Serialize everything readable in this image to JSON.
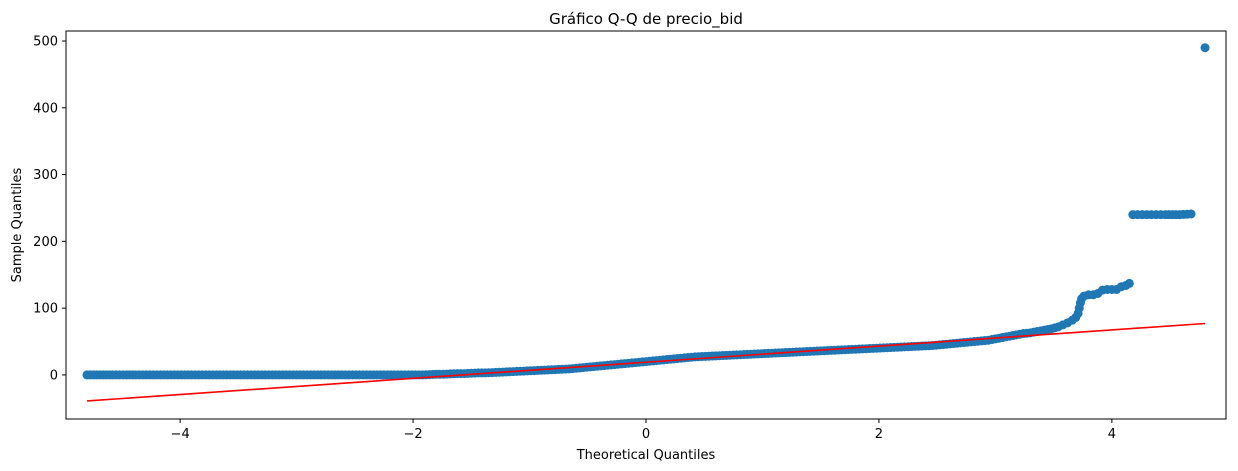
{
  "chart_data": {
    "type": "scatter",
    "title": "Gráfico Q-Q de precio_bid",
    "xlabel": "Theoretical Quantiles",
    "ylabel": "Sample Quantiles",
    "xlim": [
      -4.98,
      4.98
    ],
    "ylim": [
      -66,
      515
    ],
    "x_ticks": [
      {
        "value": -4,
        "label": "−4"
      },
      {
        "value": -2,
        "label": "−2"
      },
      {
        "value": 0,
        "label": "0"
      },
      {
        "value": 2,
        "label": "2"
      },
      {
        "value": 4,
        "label": "4"
      }
    ],
    "y_ticks": [
      {
        "value": 0,
        "label": "0"
      },
      {
        "value": 100,
        "label": "100"
      },
      {
        "value": 200,
        "label": "200"
      },
      {
        "value": 300,
        "label": "300"
      },
      {
        "value": 400,
        "label": "400"
      },
      {
        "value": 500,
        "label": "500"
      }
    ],
    "grid": false,
    "series": [
      {
        "kind": "points",
        "color": "#1f77b4",
        "points": [
          [
            -4.8,
            0
          ],
          [
            -4.58,
            0
          ],
          [
            -4.46,
            0
          ],
          [
            -4.38,
            0
          ],
          [
            -4.32,
            0
          ],
          [
            -4.26,
            0
          ],
          [
            -4.2,
            0
          ],
          [
            -4.14,
            0
          ],
          [
            -4.08,
            0
          ],
          [
            -4.02,
            0
          ],
          [
            -3.96,
            0
          ],
          [
            -3.9,
            0
          ],
          [
            -3.84,
            0
          ],
          [
            -3.78,
            0
          ],
          [
            -3.72,
            0
          ],
          [
            -3.66,
            0
          ],
          [
            -3.6,
            0
          ],
          [
            -3.54,
            0
          ],
          [
            -3.48,
            0
          ],
          [
            -3.42,
            0
          ],
          [
            -3.36,
            0
          ],
          [
            -3.3,
            0
          ],
          [
            -3.24,
            0
          ],
          [
            -3.18,
            0
          ],
          [
            -3.12,
            0
          ],
          [
            -3.06,
            0
          ],
          [
            -3.0,
            0
          ],
          [
            -2.94,
            0
          ],
          [
            -2.88,
            0
          ],
          [
            -2.82,
            0
          ],
          [
            -2.76,
            0
          ],
          [
            -2.7,
            0
          ],
          [
            -2.64,
            0
          ],
          [
            -2.58,
            0
          ],
          [
            -2.52,
            0
          ],
          [
            -2.46,
            0
          ],
          [
            -2.4,
            0
          ],
          [
            -2.34,
            0
          ],
          [
            -2.28,
            0
          ],
          [
            -2.22,
            0
          ],
          [
            -2.16,
            0
          ],
          [
            -2.1,
            0
          ],
          [
            -2.04,
            0
          ],
          [
            -1.98,
            0
          ],
          [
            -1.92,
            0
          ],
          [
            -1.86,
            0.5
          ],
          [
            -1.8,
            1
          ],
          [
            -1.74,
            1
          ],
          [
            -1.68,
            1.5
          ],
          [
            -1.62,
            2
          ],
          [
            -1.56,
            2
          ],
          [
            -1.5,
            2.5
          ],
          [
            -1.44,
            3
          ],
          [
            -1.38,
            3
          ],
          [
            -1.32,
            3.5
          ],
          [
            -1.26,
            4
          ],
          [
            -1.2,
            4.5
          ],
          [
            -1.14,
            5
          ],
          [
            -1.08,
            5.5
          ],
          [
            -1.02,
            6
          ],
          [
            -0.96,
            6.5
          ],
          [
            -0.9,
            7
          ],
          [
            -0.84,
            7.5
          ],
          [
            -0.78,
            8
          ],
          [
            -0.72,
            8.5
          ],
          [
            -0.66,
            9
          ],
          [
            -0.6,
            10
          ],
          [
            -0.54,
            11
          ],
          [
            -0.48,
            12
          ],
          [
            -0.42,
            13
          ],
          [
            -0.36,
            14
          ],
          [
            -0.3,
            15
          ],
          [
            -0.24,
            16
          ],
          [
            -0.18,
            17
          ],
          [
            -0.12,
            18
          ],
          [
            -0.06,
            19
          ],
          [
            0.0,
            20
          ],
          [
            0.06,
            21
          ],
          [
            0.12,
            22
          ],
          [
            0.18,
            23
          ],
          [
            0.24,
            24
          ],
          [
            0.3,
            25
          ],
          [
            0.36,
            26
          ],
          [
            0.42,
            27
          ],
          [
            0.48,
            27.5
          ],
          [
            0.54,
            28
          ],
          [
            0.6,
            28.5
          ],
          [
            0.66,
            29
          ],
          [
            0.72,
            29.5
          ],
          [
            0.78,
            30
          ],
          [
            0.84,
            30.5
          ],
          [
            0.9,
            31
          ],
          [
            0.96,
            31.5
          ],
          [
            1.02,
            32
          ],
          [
            1.08,
            32.5
          ],
          [
            1.14,
            33
          ],
          [
            1.2,
            33.5
          ],
          [
            1.26,
            34
          ],
          [
            1.32,
            34.5
          ],
          [
            1.38,
            35
          ],
          [
            1.44,
            35.5
          ],
          [
            1.5,
            36
          ],
          [
            1.56,
            36.5
          ],
          [
            1.62,
            37
          ],
          [
            1.68,
            37.5
          ],
          [
            1.74,
            38
          ],
          [
            1.8,
            38.5
          ],
          [
            1.86,
            39
          ],
          [
            1.92,
            39.5
          ],
          [
            1.98,
            40
          ],
          [
            2.04,
            40.5
          ],
          [
            2.1,
            41
          ],
          [
            2.16,
            41.5
          ],
          [
            2.22,
            42
          ],
          [
            2.28,
            42.5
          ],
          [
            2.34,
            43
          ],
          [
            2.4,
            43.5
          ],
          [
            2.46,
            44
          ],
          [
            2.52,
            45
          ],
          [
            2.58,
            46
          ],
          [
            2.64,
            47
          ],
          [
            2.7,
            48
          ],
          [
            2.76,
            49
          ],
          [
            2.82,
            50
          ],
          [
            2.88,
            51
          ],
          [
            2.94,
            52
          ],
          [
            3.0,
            54
          ],
          [
            3.06,
            56
          ],
          [
            3.12,
            58
          ],
          [
            3.18,
            60
          ],
          [
            3.24,
            62
          ],
          [
            3.3,
            63
          ],
          [
            3.36,
            65
          ],
          [
            3.42,
            67
          ],
          [
            3.48,
            69
          ],
          [
            3.54,
            72
          ],
          [
            3.58,
            75
          ],
          [
            3.62,
            78
          ],
          [
            3.66,
            82
          ],
          [
            3.69,
            86
          ],
          [
            3.71,
            92
          ],
          [
            3.72,
            100
          ],
          [
            3.73,
            108
          ],
          [
            3.74,
            114
          ],
          [
            3.76,
            118
          ],
          [
            3.8,
            120
          ],
          [
            3.84,
            120
          ],
          [
            3.88,
            122
          ],
          [
            3.92,
            127
          ],
          [
            3.96,
            128
          ],
          [
            4.0,
            128
          ],
          [
            4.04,
            128
          ],
          [
            4.08,
            132
          ],
          [
            4.12,
            134
          ],
          [
            4.15,
            137
          ],
          [
            4.18,
            240
          ],
          [
            4.22,
            240
          ],
          [
            4.26,
            240
          ],
          [
            4.3,
            240
          ],
          [
            4.34,
            240
          ],
          [
            4.38,
            240
          ],
          [
            4.42,
            240
          ],
          [
            4.46,
            240
          ],
          [
            4.52,
            240
          ],
          [
            4.58,
            240
          ],
          [
            4.68,
            241
          ],
          [
            4.8,
            490
          ]
        ]
      },
      {
        "kind": "line",
        "color": "#ff0000",
        "points": [
          [
            -4.8,
            -39
          ],
          [
            4.8,
            77
          ]
        ]
      }
    ]
  }
}
